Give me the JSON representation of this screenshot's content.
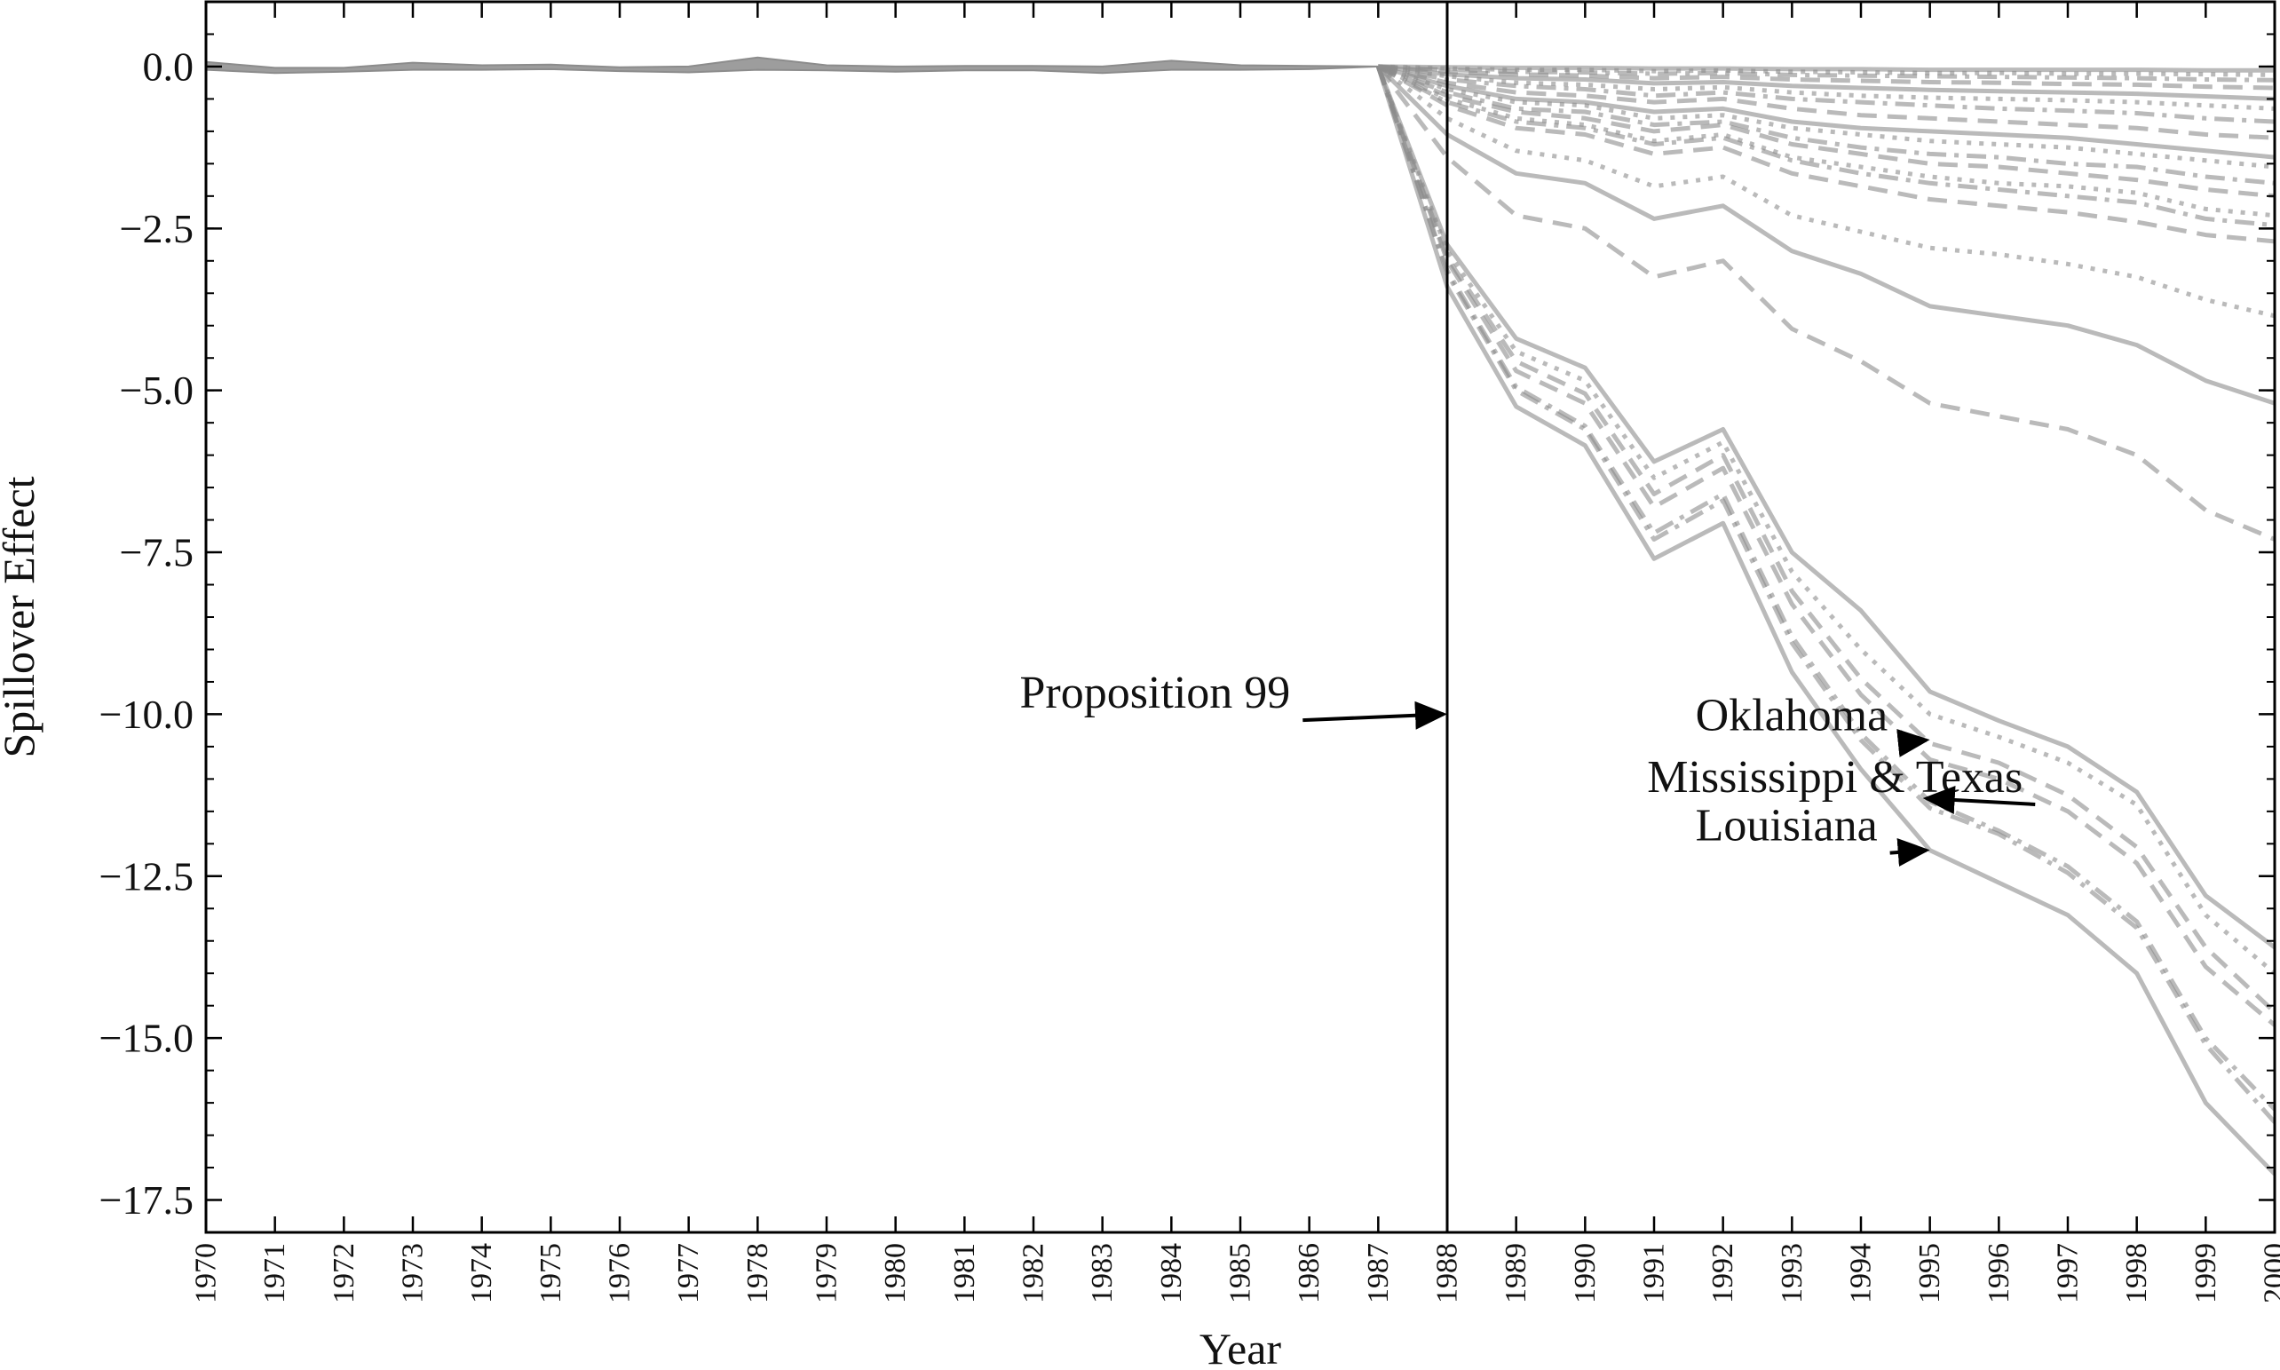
{
  "chart_data": {
    "type": "line",
    "title": "",
    "xlabel": "Year",
    "ylabel": "Spillover Effect",
    "xlim": [
      1970,
      2000
    ],
    "ylim": [
      -18,
      1
    ],
    "x_ticks": [
      1970,
      1971,
      1972,
      1973,
      1974,
      1975,
      1976,
      1977,
      1978,
      1979,
      1980,
      1981,
      1982,
      1983,
      1984,
      1985,
      1986,
      1987,
      1988,
      1989,
      1990,
      1991,
      1992,
      1993,
      1994,
      1995,
      1996,
      1997,
      1998,
      1999,
      2000
    ],
    "y_ticks": [
      0.0,
      -2.5,
      -5.0,
      -7.5,
      -10.0,
      -12.5,
      -15.0,
      -17.5
    ],
    "y_tick_labels": [
      "0.0",
      "−2.5",
      "−5.0",
      "−7.5",
      "−10.0",
      "−12.5",
      "−15.0",
      "−17.5"
    ],
    "grid": false,
    "line_color": "#8c8c8c",
    "vline": {
      "x": 1988,
      "color": "#000000"
    },
    "annotations": [
      {
        "name": "proposition-99",
        "text": "Proposition 99",
        "x": 1988,
        "y": -10.0,
        "text_x": 1981.8,
        "text_y": -9.9
      },
      {
        "name": "oklahoma",
        "text": "Oklahoma",
        "x": 1995,
        "y": -10.4,
        "text_x": 1991.6,
        "text_y": -10.25
      },
      {
        "name": "mississippi-texas",
        "text": "Mississippi & Texas",
        "x": 1995,
        "y": -11.3,
        "text_x": 1990.9,
        "text_y": -11.2
      },
      {
        "name": "louisiana",
        "text": "Louisiana",
        "x": 1995,
        "y": -12.1,
        "text_x": 1991.6,
        "text_y": -11.95
      }
    ],
    "pre_period": {
      "years": [
        1970,
        1971,
        1972,
        1973,
        1974,
        1975,
        1976,
        1977,
        1978,
        1979,
        1980,
        1981,
        1982,
        1983,
        1984,
        1985,
        1986,
        1987
      ],
      "upper": [
        0.07,
        -0.02,
        -0.02,
        0.06,
        0.02,
        0.03,
        -0.01,
        0.0,
        0.14,
        0.02,
        0.0,
        0.01,
        0.01,
        0.0,
        0.09,
        0.02,
        0.01,
        0.0
      ],
      "lower": [
        -0.05,
        -0.1,
        -0.08,
        -0.05,
        -0.05,
        -0.04,
        -0.07,
        -0.09,
        -0.05,
        -0.06,
        -0.08,
        -0.06,
        -0.06,
        -0.1,
        -0.05,
        -0.05,
        -0.04,
        0.0
      ]
    },
    "series_x": [
      1987,
      1988,
      1989,
      1990,
      1991,
      1992,
      1993,
      1994,
      1995,
      1996,
      1997,
      1998,
      1999,
      2000
    ],
    "series": [
      {
        "name": "Louisiana",
        "dash": "solid",
        "values": [
          0,
          -3.4,
          -5.25,
          -5.85,
          -7.6,
          -7.05,
          -9.35,
          -10.85,
          -12.1,
          -12.6,
          -13.1,
          -14.0,
          -16.0,
          -17.1
        ]
      },
      {
        "dash": "dashdot",
        "values": [
          0,
          -3.2,
          -5.0,
          -5.6,
          -7.3,
          -6.7,
          -8.9,
          -10.4,
          -11.45,
          -11.85,
          -12.45,
          -13.3,
          -15.1,
          -16.3
        ]
      },
      {
        "dash": "dashdot",
        "values": [
          0,
          -3.15,
          -4.95,
          -5.55,
          -7.2,
          -6.6,
          -8.8,
          -10.3,
          -11.35,
          -11.8,
          -12.35,
          -13.2,
          -15.0,
          -16.1
        ]
      },
      {
        "dash": "dashed",
        "values": [
          0,
          -3.0,
          -4.7,
          -5.2,
          -6.8,
          -6.2,
          -8.3,
          -9.7,
          -10.7,
          -11.0,
          -11.5,
          -12.3,
          -13.9,
          -14.8
        ]
      },
      {
        "dash": "dashed",
        "values": [
          0,
          -2.95,
          -4.55,
          -5.05,
          -6.6,
          -6.0,
          -8.1,
          -9.45,
          -10.45,
          -10.75,
          -11.25,
          -12.05,
          -13.6,
          -14.6
        ]
      },
      {
        "name": "Oklahoma",
        "dash": "dotted",
        "values": [
          0,
          -2.85,
          -4.4,
          -4.85,
          -6.35,
          -5.8,
          -7.8,
          -9.0,
          -10.0,
          -10.35,
          -10.75,
          -11.4,
          -13.1,
          -14.0
        ]
      },
      {
        "dash": "solid",
        "values": [
          0,
          -2.75,
          -4.2,
          -4.65,
          -6.1,
          -5.6,
          -7.5,
          -8.4,
          -9.65,
          -10.1,
          -10.5,
          -11.2,
          -12.8,
          -13.6
        ]
      },
      {
        "dash": "dashed",
        "values": [
          0,
          -1.4,
          -2.3,
          -2.5,
          -3.25,
          -3.0,
          -4.05,
          -4.55,
          -5.2,
          -5.4,
          -5.6,
          -6.0,
          -6.85,
          -7.3
        ]
      },
      {
        "dash": "solid",
        "values": [
          0,
          -1.05,
          -1.65,
          -1.8,
          -2.35,
          -2.15,
          -2.85,
          -3.2,
          -3.7,
          -3.85,
          -4.0,
          -4.3,
          -4.85,
          -5.2
        ]
      },
      {
        "dash": "dotted",
        "values": [
          0,
          -0.8,
          -1.3,
          -1.45,
          -1.85,
          -1.7,
          -2.3,
          -2.55,
          -2.8,
          -2.9,
          -3.05,
          -3.25,
          -3.6,
          -3.85
        ]
      },
      {
        "dash": "dashed",
        "values": [
          0,
          -0.6,
          -0.95,
          -1.05,
          -1.35,
          -1.25,
          -1.65,
          -1.85,
          -2.05,
          -2.15,
          -2.25,
          -2.4,
          -2.6,
          -2.7
        ]
      },
      {
        "dash": "dashdot",
        "values": [
          0,
          -0.55,
          -0.85,
          -0.95,
          -1.2,
          -1.1,
          -1.45,
          -1.65,
          -1.8,
          -1.9,
          -2.0,
          -2.1,
          -2.35,
          -2.45
        ]
      },
      {
        "dash": "dotted",
        "values": [
          0,
          -0.5,
          -0.8,
          -0.9,
          -1.15,
          -1.05,
          -1.4,
          -1.55,
          -1.7,
          -1.8,
          -1.85,
          -1.95,
          -2.2,
          -2.3
        ]
      },
      {
        "dash": "dashed",
        "values": [
          0,
          -0.45,
          -0.7,
          -0.8,
          -1.0,
          -0.9,
          -1.2,
          -1.35,
          -1.5,
          -1.55,
          -1.65,
          -1.75,
          -1.9,
          -2.0
        ]
      },
      {
        "dash": "dashdot",
        "values": [
          0,
          -0.4,
          -0.65,
          -0.7,
          -0.9,
          -0.85,
          -1.1,
          -1.25,
          -1.35,
          -1.4,
          -1.5,
          -1.55,
          -1.7,
          -1.8
        ]
      },
      {
        "dash": "dotted",
        "values": [
          0,
          -0.35,
          -0.55,
          -0.6,
          -0.8,
          -0.75,
          -0.95,
          -1.05,
          -1.15,
          -1.2,
          -1.25,
          -1.35,
          -1.45,
          -1.55
        ]
      },
      {
        "dash": "solid",
        "values": [
          0,
          -0.3,
          -0.5,
          -0.55,
          -0.7,
          -0.65,
          -0.85,
          -0.95,
          -1.0,
          -1.05,
          -1.1,
          -1.2,
          -1.3,
          -1.4
        ]
      },
      {
        "dash": "dashed",
        "values": [
          0,
          -0.25,
          -0.4,
          -0.45,
          -0.55,
          -0.5,
          -0.65,
          -0.75,
          -0.8,
          -0.85,
          -0.9,
          -0.95,
          -1.05,
          -1.1
        ]
      },
      {
        "dash": "dashdot",
        "values": [
          0,
          -0.2,
          -0.3,
          -0.35,
          -0.45,
          -0.4,
          -0.5,
          -0.55,
          -0.6,
          -0.65,
          -0.68,
          -0.72,
          -0.8,
          -0.85
        ]
      },
      {
        "dash": "dotted",
        "values": [
          0,
          -0.15,
          -0.25,
          -0.28,
          -0.35,
          -0.32,
          -0.4,
          -0.45,
          -0.48,
          -0.5,
          -0.52,
          -0.55,
          -0.6,
          -0.65
        ]
      },
      {
        "dash": "solid",
        "values": [
          0,
          -0.12,
          -0.18,
          -0.2,
          -0.26,
          -0.24,
          -0.3,
          -0.33,
          -0.36,
          -0.38,
          -0.4,
          -0.42,
          -0.46,
          -0.5
        ]
      },
      {
        "dash": "dashed",
        "values": [
          0,
          -0.08,
          -0.12,
          -0.14,
          -0.18,
          -0.16,
          -0.2,
          -0.22,
          -0.24,
          -0.25,
          -0.27,
          -0.28,
          -0.31,
          -0.33
        ]
      },
      {
        "dash": "dashdot",
        "values": [
          0,
          -0.05,
          -0.08,
          -0.09,
          -0.11,
          -0.1,
          -0.13,
          -0.14,
          -0.15,
          -0.16,
          -0.17,
          -0.18,
          -0.2,
          -0.21
        ]
      },
      {
        "dash": "dotted",
        "values": [
          0,
          -0.03,
          -0.05,
          -0.05,
          -0.07,
          -0.06,
          -0.08,
          -0.09,
          -0.1,
          -0.1,
          -0.11,
          -0.11,
          -0.12,
          -0.13
        ]
      },
      {
        "dash": "solid",
        "values": [
          0,
          -0.01,
          -0.02,
          -0.02,
          -0.03,
          -0.03,
          -0.04,
          -0.04,
          -0.05,
          -0.05,
          -0.05,
          -0.05,
          -0.06,
          -0.06
        ]
      }
    ]
  }
}
